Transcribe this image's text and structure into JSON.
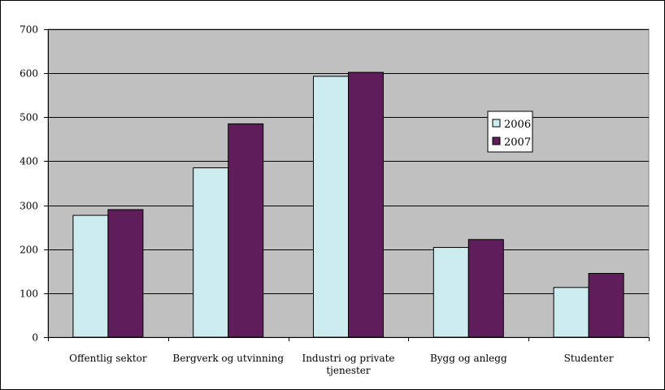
{
  "chart_data": {
    "type": "bar",
    "title": "",
    "xlabel": "",
    "ylabel": "",
    "ylim": [
      0,
      700
    ],
    "yticks": [
      0,
      100,
      200,
      300,
      400,
      500,
      600,
      700
    ],
    "grid": true,
    "legend_position": "right",
    "categories": [
      [
        "Offentlig sektor"
      ],
      [
        "Bergverk og utvinning"
      ],
      [
        "Industri og private",
        "tjenester"
      ],
      [
        "Bygg og anlegg"
      ],
      [
        "Studenter"
      ]
    ],
    "series": [
      {
        "name": "2006",
        "color": "#ccecf0",
        "values": [
          277,
          385,
          593,
          204,
          113
        ]
      },
      {
        "name": "2007",
        "color": "#5f1d5c",
        "values": [
          290,
          485,
          602,
          222,
          145
        ]
      }
    ],
    "plot_background": "#c0c0c0"
  }
}
